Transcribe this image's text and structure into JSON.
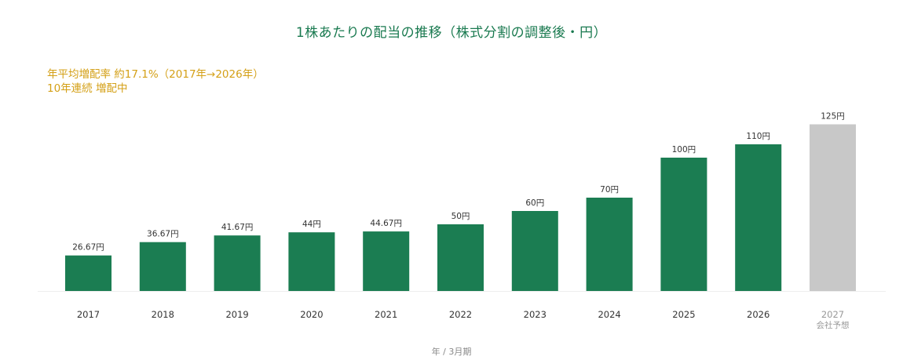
{
  "chart_data": {
    "type": "bar",
    "title": "1株あたりの配当の推移（株式分割の調整後・円）",
    "annotations": [
      "年平均増配率 約17.1%（2017年→2026年）",
      "10年連続 増配中"
    ],
    "xlabel": "年 / 3月期",
    "ylabel": "",
    "ylim": [
      0,
      140
    ],
    "grid": false,
    "categories": [
      "2017",
      "2018",
      "2019",
      "2020",
      "2021",
      "2022",
      "2023",
      "2024",
      "2025",
      "2026",
      "2027"
    ],
    "category_sublabels": [
      "",
      "",
      "",
      "",
      "",
      "",
      "",
      "",
      "",
      "",
      "会社予想"
    ],
    "values": [
      26.67,
      36.67,
      41.67,
      44,
      44.67,
      50,
      60,
      70,
      100,
      110,
      125
    ],
    "value_labels": [
      "26.67円",
      "36.67円",
      "41.67円",
      "44円",
      "44.67円",
      "50円",
      "60円",
      "70円",
      "100円",
      "110円",
      "125円"
    ],
    "colors": {
      "actual": "#1b7d52",
      "forecast": "#c8c8c8",
      "title": "#1a7a50",
      "annotation": "#d4a017"
    },
    "forecast_flags": [
      false,
      false,
      false,
      false,
      false,
      false,
      false,
      false,
      false,
      false,
      true
    ]
  }
}
